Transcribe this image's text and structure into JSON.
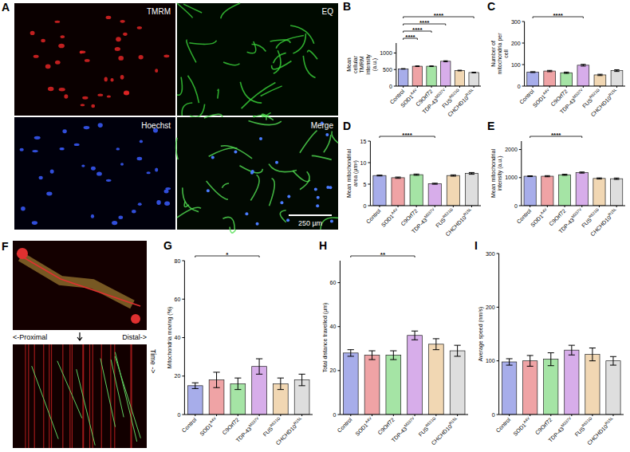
{
  "figure": {
    "panel_a": {
      "letter": "A",
      "labels": [
        "TMRM",
        "EQ",
        "Hoechst",
        "Merge"
      ],
      "scale_bar": "250 µm"
    },
    "panel_f": {
      "letter": "F",
      "proximal": "<-Proximal",
      "distal": "Distal->",
      "time": "Time ->"
    }
  },
  "chart_data": [
    {
      "panel": "B",
      "type": "bar",
      "y_label": "Mean cellular TMRM intensity (a.u.)",
      "categories": [
        "Control",
        "SOD1 A4V",
        "C9Orf72",
        "TDP-43 M337V",
        "FUS R521G",
        "CHCHD10 R15L"
      ],
      "values": [
        520,
        600,
        600,
        750,
        470,
        410
      ],
      "errors": [
        8,
        10,
        10,
        15,
        10,
        10
      ],
      "colors": [
        "#4f5bd5",
        "#e0474c",
        "#4cc94c",
        "#b05cd6",
        "#e3b068",
        "#bdbdbd"
      ],
      "ylim": [
        0,
        1300
      ],
      "yticks": [
        0,
        500,
        1000
      ],
      "annotations": [
        {
          "text": "****",
          "from": 0,
          "to": 1
        },
        {
          "text": "****",
          "from": 0,
          "to": 2
        },
        {
          "text": "****",
          "from": 0,
          "to": 3
        },
        {
          "text": "****",
          "from": 0,
          "to": 5
        }
      ]
    },
    {
      "panel": "C",
      "type": "bar",
      "y_label": "Number of mitochondria per cell",
      "categories": [
        "Control",
        "SOD1 A4V",
        "C9Orf72",
        "TDP-43 M337V",
        "FUS R521G",
        "CHCHD10 R15L"
      ],
      "values": [
        65,
        70,
        62,
        97,
        52,
        72
      ],
      "errors": [
        2,
        3,
        3,
        4,
        3,
        4
      ],
      "colors": [
        "#4f5bd5",
        "#e0474c",
        "#4cc94c",
        "#b05cd6",
        "#e3b068",
        "#bdbdbd"
      ],
      "ylim": [
        0,
        300
      ],
      "yticks": [
        0,
        100,
        200,
        300
      ],
      "annotations": [
        {
          "text": "****",
          "from": 0,
          "to": 3
        }
      ]
    },
    {
      "panel": "D",
      "type": "bar",
      "y_label": "Mean mitochondrial area (µm²)",
      "categories": [
        "Control",
        "SOD1 A4V",
        "C9Orf72",
        "TDP-43 M337V",
        "FUS R521G",
        "CHCHD10 R15L"
      ],
      "values": [
        7.0,
        6.5,
        7.2,
        5.1,
        7.0,
        7.5
      ],
      "errors": [
        0.1,
        0.15,
        0.15,
        0.12,
        0.15,
        0.2
      ],
      "colors": [
        "#4f5bd5",
        "#e0474c",
        "#4cc94c",
        "#b05cd6",
        "#e3b068",
        "#bdbdbd"
      ],
      "ylim": [
        0,
        15
      ],
      "yticks": [
        0,
        5,
        10,
        15
      ],
      "annotations": [
        {
          "text": "****",
          "from": 0,
          "to": 3
        }
      ]
    },
    {
      "panel": "E",
      "type": "bar",
      "y_label": "Mean mitochondrial intensity (a.u.)",
      "categories": [
        "Control",
        "SOD1 A4V",
        "C9Orf72",
        "TDP-43 M337V",
        "FUS R521G",
        "CHCHD10 R15L"
      ],
      "values": [
        1050,
        1050,
        1100,
        1180,
        970,
        960
      ],
      "errors": [
        15,
        20,
        20,
        20,
        20,
        25
      ],
      "colors": [
        "#4f5bd5",
        "#e0474c",
        "#4cc94c",
        "#b05cd6",
        "#e3b068",
        "#bdbdbd"
      ],
      "ylim": [
        0,
        2300
      ],
      "yticks": [
        0,
        1000,
        2000
      ],
      "annotations": [
        {
          "text": "****",
          "from": 0,
          "to": 3
        }
      ]
    },
    {
      "panel": "G",
      "type": "bar",
      "y_label": "Mitochondria moving (%)",
      "categories": [
        "Control",
        "SOD1 A4V",
        "C9Orf72",
        "TDP-43 M337V",
        "FUS R521G",
        "CHCHD10 R15L"
      ],
      "values": [
        15,
        18,
        16,
        25,
        16,
        18
      ],
      "errors": [
        1.5,
        4,
        3,
        4,
        3,
        3
      ],
      "colors": [
        "#4f5bd5",
        "#e0474c",
        "#4cc94c",
        "#b05cd6",
        "#e3b068",
        "#bdbdbd"
      ],
      "ylim": [
        0,
        80
      ],
      "yticks": [
        0,
        20,
        40,
        60,
        80
      ],
      "annotations": [
        {
          "text": "*",
          "from": 0,
          "to": 3
        }
      ]
    },
    {
      "panel": "H",
      "type": "bar",
      "y_label": "Total distance travelled (µm)",
      "categories": [
        "Control",
        "SOD1 A4V",
        "C9Orf72",
        "TDP-43 M337V",
        "FUS R521G",
        "CHCHD10 R15L"
      ],
      "values": [
        28,
        27,
        27,
        36,
        32,
        29
      ],
      "errors": [
        1.5,
        2,
        2,
        2,
        2.5,
        2.5
      ],
      "colors": [
        "#4f5bd5",
        "#e0474c",
        "#4cc94c",
        "#b05cd6",
        "#e3b068",
        "#bdbdbd"
      ],
      "ylim": [
        0,
        70
      ],
      "yticks": [
        0,
        20,
        40,
        60
      ],
      "annotations": [
        {
          "text": "**",
          "from": 0,
          "to": 3
        }
      ]
    },
    {
      "panel": "I",
      "type": "bar",
      "y_label": "Average speed (nm/s)",
      "categories": [
        "Control",
        "SOD1 A4V",
        "C9Orf72",
        "TDP-43 M337V",
        "FUS R521G",
        "CHCHD10 R15L"
      ],
      "values": [
        98,
        100,
        103,
        120,
        112,
        100
      ],
      "errors": [
        6,
        10,
        12,
        9,
        12,
        8
      ],
      "colors": [
        "#4f5bd5",
        "#e0474c",
        "#4cc94c",
        "#b05cd6",
        "#e3b068",
        "#bdbdbd"
      ],
      "ylim": [
        0,
        300
      ],
      "yticks": [
        0,
        100,
        200,
        300
      ],
      "annotations": []
    }
  ]
}
